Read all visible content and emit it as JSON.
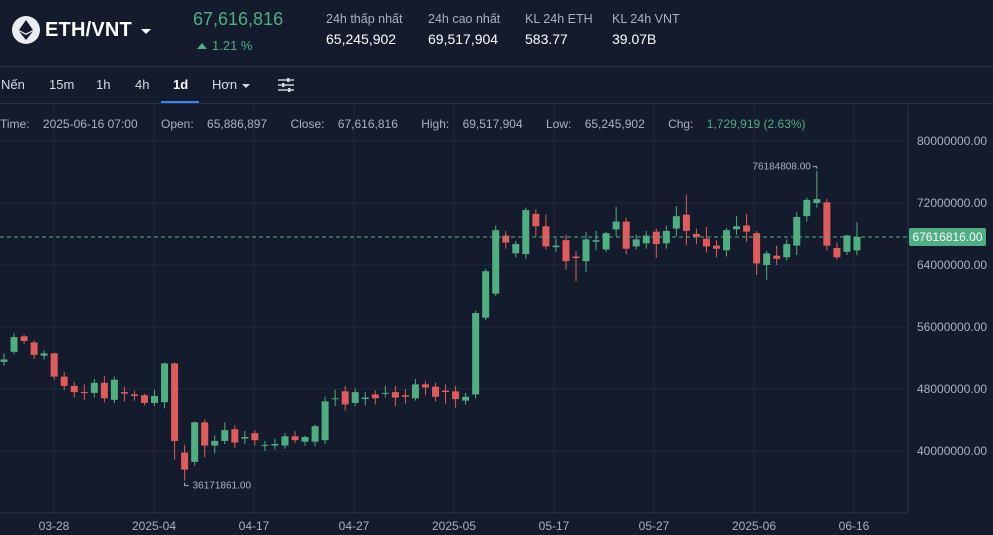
{
  "header": {
    "pair": "ETH/VNT",
    "icon": "ethereum-icon",
    "last_price": "67,616,816",
    "change_pct": "1.21 %",
    "stats": [
      {
        "label": "24h thấp nhất",
        "value": "65,245,902"
      },
      {
        "label": "24h cao nhất",
        "value": "69,517,904"
      },
      {
        "label": "KL 24h ETH",
        "value": "583.77"
      },
      {
        "label": "KL 24h VNT",
        "value": "39.07B"
      }
    ]
  },
  "timeframes": {
    "items": [
      "Nến",
      "15m",
      "1h",
      "4h",
      "1d"
    ],
    "active": "1d",
    "more_label": "Hơn"
  },
  "ohlc": {
    "time_label": "Time:",
    "time": "2025-06-16 07:00",
    "open_label": "Open:",
    "open": "65,886,897",
    "close_label": "Close:",
    "close": "67,616,816",
    "high_label": "High:",
    "high": "69,517,904",
    "low_label": "Low:",
    "low": "65,245,902",
    "chg_label": "Chg:",
    "chg": "1,729,919 (2.63%)"
  },
  "colors": {
    "up": "#4fae82",
    "down": "#e05c5c",
    "background": "#141b2d"
  },
  "chart_data": {
    "type": "candlestick",
    "y_ticks": [
      "80000000.00",
      "72000000.00",
      "64000000.00",
      "56000000.00",
      "48000000.00",
      "40000000.00"
    ],
    "x_ticks": [
      "03-28",
      "2025-04",
      "04-17",
      "04-27",
      "2025-05",
      "05-17",
      "05-27",
      "2025-06",
      "06-16"
    ],
    "ylim": [
      34000000,
      83000000
    ],
    "current_price_label": "67616816.00",
    "current_price": 67616816,
    "max_label": "76184808.00",
    "max_value": 76184808,
    "min_label": "36171861.00",
    "min_value": 36171861,
    "grid": true,
    "candles": [
      [
        51500000,
        51800000,
        52600000,
        51000000
      ],
      [
        52800000,
        54700000,
        55200000,
        52500000
      ],
      [
        54800000,
        54200000,
        55000000,
        53800000
      ],
      [
        54000000,
        52400000,
        54300000,
        51900000
      ],
      [
        52300000,
        52600000,
        53000000,
        51800000
      ],
      [
        52600000,
        49600000,
        52700000,
        49200000
      ],
      [
        49600000,
        48400000,
        50200000,
        47800000
      ],
      [
        48400000,
        47600000,
        48900000,
        46900000
      ],
      [
        47600000,
        47500000,
        48600000,
        46600000
      ],
      [
        47500000,
        48800000,
        49300000,
        46900000
      ],
      [
        48800000,
        46800000,
        49700000,
        46300000
      ],
      [
        46600000,
        49200000,
        49600000,
        46200000
      ],
      [
        47600000,
        47400000,
        48300000,
        46400000
      ],
      [
        47300000,
        47100000,
        47800000,
        46500000
      ],
      [
        47200000,
        46200000,
        47400000,
        45900000
      ],
      [
        46200000,
        47100000,
        47900000,
        45800000
      ],
      [
        46300000,
        51300000,
        51400000,
        45500000
      ],
      [
        51300000,
        41300000,
        51400000,
        38900000
      ],
      [
        39800000,
        37600000,
        40800000,
        36171861
      ],
      [
        38600000,
        43700000,
        43800000,
        38100000
      ],
      [
        43700000,
        40700000,
        44100000,
        39200000
      ],
      [
        40700000,
        41300000,
        42000000,
        39700000
      ],
      [
        41300000,
        42700000,
        43700000,
        40900000
      ],
      [
        42800000,
        41100000,
        43300000,
        40400000
      ],
      [
        41600000,
        41800000,
        42600000,
        40900000
      ],
      [
        42300000,
        41400000,
        42700000,
        40700000
      ],
      [
        40700000,
        40800000,
        41300000,
        40000000
      ],
      [
        40700000,
        40900000,
        41600000,
        40200000
      ],
      [
        40700000,
        41900000,
        42300000,
        40300000
      ],
      [
        41900000,
        41400000,
        42600000,
        41000000
      ],
      [
        41200000,
        41800000,
        42000000,
        40700000
      ],
      [
        41200000,
        43200000,
        43400000,
        40600000
      ],
      [
        41400000,
        46400000,
        47000000,
        40900000
      ],
      [
        46800000,
        46800000,
        47900000,
        45800000
      ],
      [
        47700000,
        46000000,
        48400000,
        45200000
      ],
      [
        46200000,
        47600000,
        48100000,
        45800000
      ],
      [
        46700000,
        46900000,
        47600000,
        45900000
      ],
      [
        47300000,
        46800000,
        47800000,
        46000000
      ],
      [
        47500000,
        47500000,
        48400000,
        46900000
      ],
      [
        47600000,
        46900000,
        48400000,
        45800000
      ],
      [
        47200000,
        47000000,
        48000000,
        46100000
      ],
      [
        46800000,
        48600000,
        49300000,
        46500000
      ],
      [
        48600000,
        48200000,
        49000000,
        47200000
      ],
      [
        48300000,
        47000000,
        48800000,
        46400000
      ],
      [
        47800000,
        47600000,
        48600000,
        46100000
      ],
      [
        47700000,
        46700000,
        48400000,
        45600000
      ],
      [
        46500000,
        47000000,
        47500000,
        46000000
      ],
      [
        47300000,
        57800000,
        58100000,
        46800000
      ],
      [
        57200000,
        63200000,
        63500000,
        56900000
      ],
      [
        60300000,
        68500000,
        69100000,
        60000000
      ],
      [
        67800000,
        66900000,
        68400000,
        66100000
      ],
      [
        65500000,
        66700000,
        67100000,
        65000000
      ],
      [
        65400000,
        71100000,
        71400000,
        64800000
      ],
      [
        70600000,
        69000000,
        71200000,
        67700000
      ],
      [
        69000000,
        66400000,
        70500000,
        66000000
      ],
      [
        66300000,
        66500000,
        67400000,
        65700000
      ],
      [
        67200000,
        64500000,
        67900000,
        63400000
      ],
      [
        65100000,
        64900000,
        65800000,
        61900000
      ],
      [
        64500000,
        67300000,
        68300000,
        63100000
      ],
      [
        67000000,
        67200000,
        68400000,
        65900000
      ],
      [
        66000000,
        68100000,
        68300000,
        65700000
      ],
      [
        68600000,
        69600000,
        71500000,
        67700000
      ],
      [
        69600000,
        66100000,
        70100000,
        65400000
      ],
      [
        66400000,
        67300000,
        67900000,
        66000000
      ],
      [
        66800000,
        67800000,
        68400000,
        66100000
      ],
      [
        68300000,
        66700000,
        68700000,
        64900000
      ],
      [
        66800000,
        68400000,
        69100000,
        66100000
      ],
      [
        68700000,
        70300000,
        71600000,
        67700000
      ],
      [
        70500000,
        68400000,
        73100000,
        66600000
      ],
      [
        68000000,
        67600000,
        68700000,
        66700000
      ],
      [
        67400000,
        66400000,
        68900000,
        65600000
      ],
      [
        66500000,
        66100000,
        67200000,
        65000000
      ],
      [
        65900000,
        68500000,
        68800000,
        65100000
      ],
      [
        68600000,
        69000000,
        70300000,
        67900000
      ],
      [
        69100000,
        68300000,
        70600000,
        67000000
      ],
      [
        68100000,
        64200000,
        68400000,
        62700000
      ],
      [
        64000000,
        65500000,
        65800000,
        62100000
      ],
      [
        65200000,
        64800000,
        66500000,
        64000000
      ],
      [
        65000000,
        66700000,
        67300000,
        64600000
      ],
      [
        66500000,
        70200000,
        70800000,
        65300000
      ],
      [
        70300000,
        72400000,
        72700000,
        69600000
      ],
      [
        72000000,
        72500000,
        76184808,
        71400000
      ],
      [
        72100000,
        66500000,
        72500000,
        65900000
      ],
      [
        66200000,
        65000000,
        66900000,
        64700000
      ],
      [
        65700000,
        67800000,
        67900000,
        65300000
      ],
      [
        65886897,
        67616816,
        69517904,
        65245902
      ]
    ]
  }
}
